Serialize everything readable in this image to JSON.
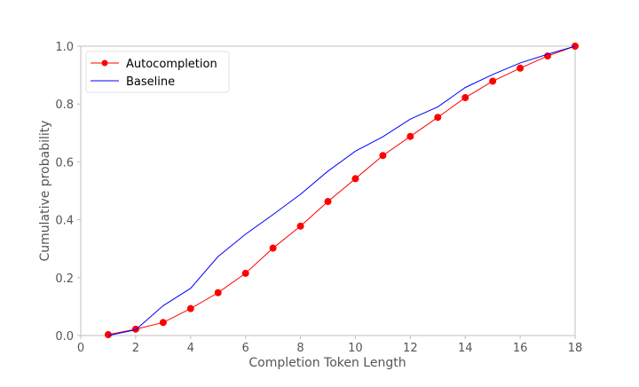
{
  "chart_data": {
    "type": "line",
    "title": "",
    "xlabel": "Completion Token Length",
    "ylabel": "Cumulative probability",
    "xlim": [
      0,
      18
    ],
    "ylim": [
      0,
      1.0
    ],
    "xticks": [
      0,
      2,
      4,
      6,
      8,
      10,
      12,
      14,
      16,
      18
    ],
    "yticks": [
      0.0,
      0.2,
      0.4,
      0.6,
      0.8,
      1.0
    ],
    "xtick_labels": [
      "0",
      "2",
      "4",
      "6",
      "8",
      "10",
      "12",
      "14",
      "16",
      "18"
    ],
    "ytick_labels": [
      "0.0",
      "0.2",
      "0.4",
      "0.6",
      "0.8",
      "1.0"
    ],
    "grid": false,
    "legend_position": "top-left",
    "series": [
      {
        "name": "Autocompletion",
        "color": "#ff0000",
        "marker": "circle",
        "x": [
          1,
          2,
          3,
          4,
          5,
          6,
          7,
          8,
          9,
          10,
          11,
          12,
          13,
          14,
          15,
          16,
          17,
          18
        ],
        "y": [
          0.003,
          0.022,
          0.045,
          0.093,
          0.148,
          0.215,
          0.302,
          0.378,
          0.463,
          0.542,
          0.622,
          0.688,
          0.754,
          0.822,
          0.879,
          0.924,
          0.966,
          1.0
        ]
      },
      {
        "name": "Baseline",
        "color": "#0000ff",
        "marker": "none",
        "x": [
          1,
          2,
          3,
          4,
          5,
          6,
          7,
          8,
          9,
          10,
          11,
          12,
          13,
          14,
          15,
          16,
          17,
          18
        ],
        "y": [
          0.0,
          0.02,
          0.103,
          0.163,
          0.273,
          0.35,
          0.418,
          0.488,
          0.568,
          0.637,
          0.687,
          0.748,
          0.79,
          0.857,
          0.902,
          0.942,
          0.972,
          1.0
        ]
      }
    ]
  }
}
